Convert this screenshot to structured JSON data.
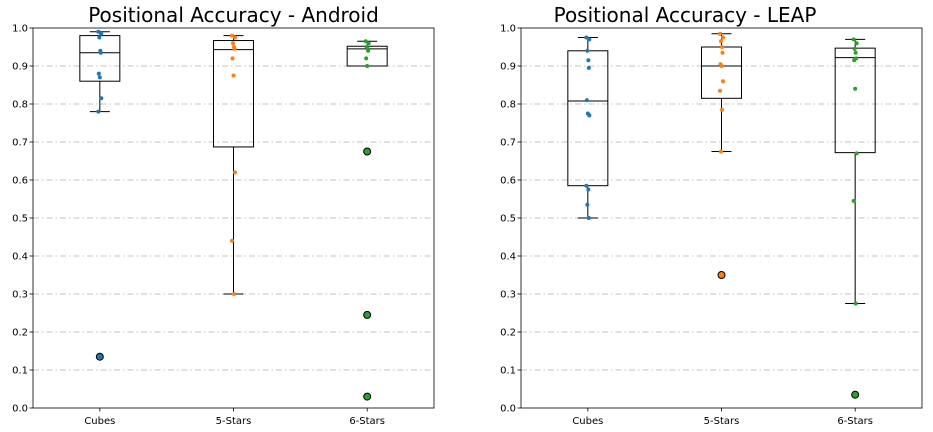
{
  "chart_data": [
    {
      "type": "box",
      "title": "Positional Accuracy - Android",
      "xlabel": "",
      "ylabel": "",
      "ylim": [
        0,
        1.0
      ],
      "yticks": [
        "0.0",
        "0.1",
        "0.2",
        "0.3",
        "0.4",
        "0.5",
        "0.6",
        "0.7",
        "0.8",
        "0.9",
        "1.0"
      ],
      "grid": "horizontal dash-dot",
      "categories": [
        "Cubes",
        "5-Stars",
        "6-Stars"
      ],
      "series": [
        {
          "color": "#1f77b4",
          "box": {
            "whisker_low": 0.78,
            "q1": 0.86,
            "median": 0.935,
            "q3": 0.98,
            "whisker_high": 0.99
          },
          "outliers": [
            0.135
          ],
          "points": [
            0.99,
            0.985,
            0.975,
            0.94,
            0.935,
            0.88,
            0.87,
            0.815,
            0.78
          ]
        },
        {
          "color": "#ff7f0e",
          "box": {
            "whisker_low": 0.3,
            "q1": 0.687,
            "median": 0.943,
            "q3": 0.967,
            "whisker_high": 0.98
          },
          "outliers": [],
          "points": [
            0.98,
            0.975,
            0.96,
            0.95,
            0.945,
            0.92,
            0.875,
            0.62,
            0.44,
            0.3
          ]
        },
        {
          "color": "#2ca02c",
          "box": {
            "whisker_low": 0.9,
            "q1": 0.9,
            "median": 0.945,
            "q3": 0.952,
            "whisker_high": 0.965
          },
          "outliers": [
            0.675,
            0.245,
            0.03
          ],
          "points": [
            0.965,
            0.96,
            0.95,
            0.945,
            0.94,
            0.92,
            0.9
          ]
        }
      ]
    },
    {
      "type": "box",
      "title": "Positional Accuracy - LEAP",
      "xlabel": "",
      "ylabel": "",
      "ylim": [
        0,
        1.0
      ],
      "yticks": [
        "0.0",
        "0.1",
        "0.2",
        "0.3",
        "0.4",
        "0.5",
        "0.6",
        "0.7",
        "0.8",
        "0.9",
        "1.0"
      ],
      "grid": "horizontal dash-dot",
      "categories": [
        "Cubes",
        "5-Stars",
        "6-Stars"
      ],
      "series": [
        {
          "color": "#1f77b4",
          "box": {
            "whisker_low": 0.5,
            "q1": 0.585,
            "median": 0.808,
            "q3": 0.94,
            "whisker_high": 0.975
          },
          "outliers": [],
          "points": [
            0.975,
            0.97,
            0.94,
            0.915,
            0.895,
            0.81,
            0.775,
            0.77,
            0.585,
            0.575,
            0.535,
            0.5
          ]
        },
        {
          "color": "#ff7f0e",
          "box": {
            "whisker_low": 0.675,
            "q1": 0.815,
            "median": 0.9,
            "q3": 0.95,
            "whisker_high": 0.985
          },
          "outliers": [
            0.35
          ],
          "points": [
            0.985,
            0.975,
            0.965,
            0.95,
            0.935,
            0.905,
            0.9,
            0.86,
            0.835,
            0.785,
            0.675
          ]
        },
        {
          "color": "#2ca02c",
          "box": {
            "whisker_low": 0.275,
            "q1": 0.672,
            "median": 0.922,
            "q3": 0.947,
            "whisker_high": 0.97
          },
          "outliers": [
            0.035
          ],
          "points": [
            0.97,
            0.96,
            0.945,
            0.935,
            0.92,
            0.915,
            0.84,
            0.67,
            0.545,
            0.275
          ]
        }
      ]
    }
  ]
}
